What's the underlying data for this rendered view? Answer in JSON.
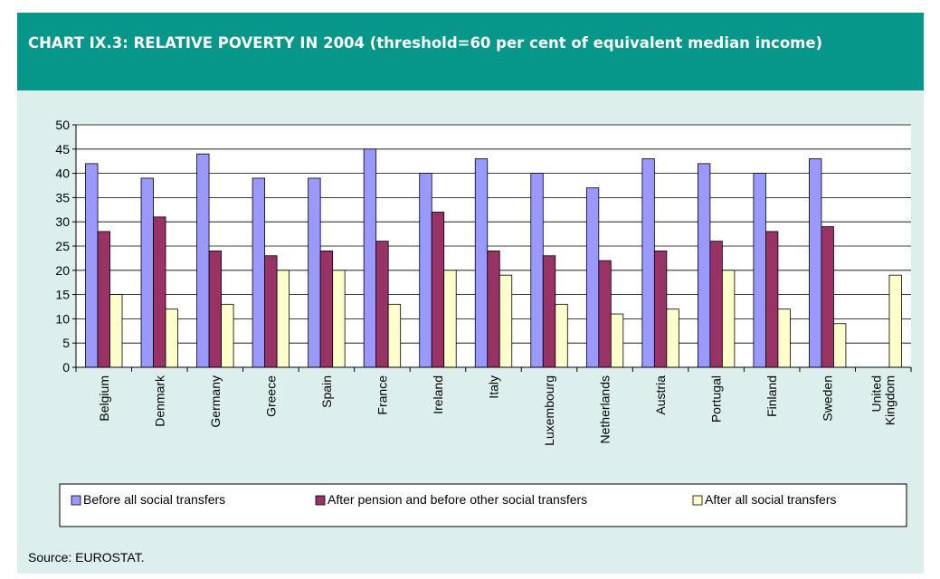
{
  "header": {
    "title": "CHART IX.3: RELATIVE POVERTY IN 2004 (threshold=60 per cent of equivalent median income)"
  },
  "source": "Source: EUROSTAT.",
  "chart_data": {
    "type": "bar",
    "title": "CHART IX.3: RELATIVE POVERTY IN 2004 (threshold=60 per cent of equivalent median income)",
    "categories": [
      "Belgium",
      "Denmark",
      "Germany",
      "Greece",
      "Spain",
      "France",
      "Ireland",
      "Italy",
      "Luxembourg",
      "Netherlands",
      "Austria",
      "Portugal",
      "Finland",
      "Sweden",
      "United Kingdom"
    ],
    "category_label_lines": [
      [
        "Belgium"
      ],
      [
        "Denmark"
      ],
      [
        "Germany"
      ],
      [
        "Greece"
      ],
      [
        "Spain"
      ],
      [
        "France"
      ],
      [
        "Ireland"
      ],
      [
        "Italy"
      ],
      [
        "Luxembourg"
      ],
      [
        "Netherlands"
      ],
      [
        "Austria"
      ],
      [
        "Portugal"
      ],
      [
        "Finland"
      ],
      [
        "Sweden"
      ],
      [
        "United",
        "Kingdom"
      ]
    ],
    "series": [
      {
        "name": "Before all social transfers",
        "color": "#9999ff",
        "values": [
          42,
          39,
          44,
          39,
          39,
          45,
          40,
          43,
          40,
          37,
          43,
          42,
          40,
          43,
          null
        ]
      },
      {
        "name": "After pension and before other social transfers",
        "color": "#993366",
        "values": [
          28,
          31,
          24,
          23,
          24,
          26,
          32,
          24,
          23,
          22,
          24,
          26,
          28,
          29,
          null
        ]
      },
      {
        "name": "After all social transfers",
        "color": "#ffffcc",
        "values": [
          15,
          12,
          13,
          20,
          20,
          13,
          20,
          19,
          13,
          11,
          12,
          20,
          12,
          9,
          19
        ]
      }
    ],
    "ylim": [
      0,
      50
    ],
    "yticks": [
      0,
      5,
      10,
      15,
      20,
      25,
      30,
      35,
      40,
      45,
      50
    ],
    "grid": true,
    "legend_position": "bottom",
    "plot_background": "#ffffff",
    "colors": {
      "header": "#06968a",
      "panel": "#dcefed"
    }
  }
}
